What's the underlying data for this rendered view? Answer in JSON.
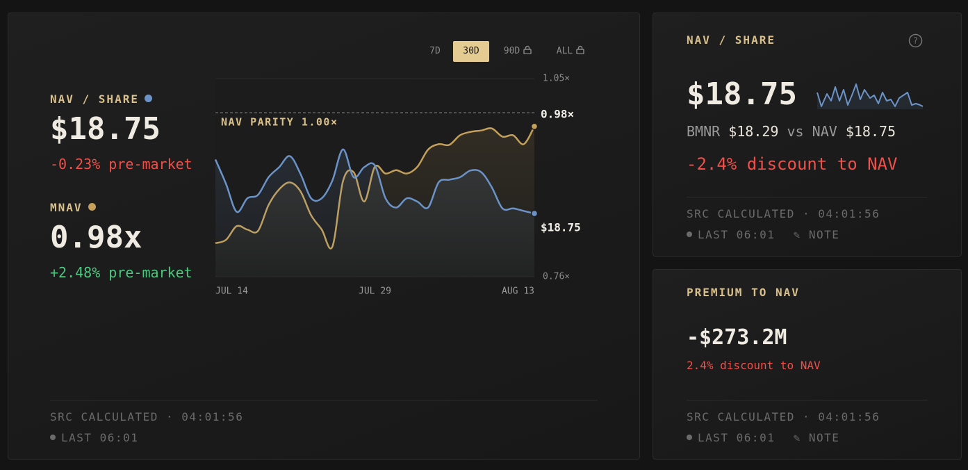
{
  "main_panel": {
    "timeframes": [
      "7D",
      "30D",
      "90D",
      "ALL"
    ],
    "metrics": [
      {
        "value": "$18.75",
        "change": "-0.23% pre-market"
      },
      {
        "value": "0.98x",
        "change": "+2.48% pre-market"
      }
    ],
    "source": "SRC CALCULATED · 04:01:56",
    "last": "LAST 06:01"
  },
  "chart_data": {
    "type": "line",
    "categories": [
      "JUL 14",
      null,
      null,
      null,
      null,
      null,
      null,
      null,
      null,
      null,
      null,
      null,
      null,
      null,
      null,
      "JUL 29",
      null,
      null,
      null,
      null,
      null,
      null,
      null,
      null,
      null,
      null,
      null,
      null,
      null,
      null,
      "AUG 13"
    ],
    "series": [
      {
        "name": "MNAV",
        "color": "#c4a05a",
        "values": [
          0.809,
          0.814,
          0.834,
          0.829,
          0.827,
          0.865,
          0.888,
          0.898,
          0.885,
          0.85,
          0.829,
          0.804,
          0.9,
          0.913,
          0.87,
          0.921,
          0.911,
          0.916,
          0.911,
          0.921,
          0.946,
          0.954,
          0.953,
          0.967,
          0.972,
          0.974,
          0.977,
          0.965,
          0.967,
          0.954,
          0.98
        ],
        "value_labels": [
          null,
          null,
          null,
          null,
          null,
          null,
          null,
          null,
          null,
          null,
          null,
          null,
          null,
          null,
          null,
          null,
          null,
          null,
          null,
          null,
          null,
          null,
          null,
          null,
          null,
          null,
          null,
          null,
          null,
          null,
          "0.98×"
        ]
      },
      {
        "name": "NAV / SHARE",
        "color": "#6b93c8",
        "axis": "y2",
        "values": [
          19.39,
          19.1,
          18.77,
          18.93,
          18.97,
          19.18,
          19.3,
          19.43,
          19.22,
          18.93,
          18.93,
          19.14,
          19.51,
          19.18,
          19.3,
          19.32,
          18.93,
          18.82,
          18.93,
          18.89,
          18.82,
          19.12,
          19.15,
          19.18,
          19.26,
          19.24,
          19.06,
          18.81,
          18.81,
          18.78,
          18.75
        ],
        "value_labels": [
          null,
          null,
          null,
          null,
          null,
          null,
          null,
          null,
          null,
          null,
          null,
          null,
          null,
          null,
          null,
          null,
          null,
          null,
          null,
          null,
          null,
          null,
          null,
          null,
          null,
          null,
          null,
          null,
          null,
          null,
          "$18.75"
        ]
      }
    ],
    "ylim": [
      0.76,
      1.05
    ],
    "yticks": [
      {
        "value": 1.05,
        "label": "1.05×"
      },
      {
        "value": 0.76,
        "label": "0.76×"
      }
    ],
    "y2lim": [
      18.0,
      20.35
    ],
    "reference_line": {
      "value": 1.0,
      "label": "NAV PARITY 1.00×"
    },
    "grid": true
  },
  "nav_card": {
    "title": "NAV / SHARE",
    "value": "$18.75",
    "ticker": "BMNR",
    "price": "$18.29",
    "vs": "vs",
    "nav_label": "NAV",
    "nav_value": "$18.75",
    "discount": "-2.4% discount to NAV",
    "source": "SRC CALCULATED · 04:01:56",
    "last": "LAST 06:01",
    "note": "NOTE"
  },
  "premium_card": {
    "title": "PREMIUM TO NAV",
    "value": "-$273.2M",
    "discount": "2.4% discount to NAV",
    "source": "SRC CALCULATED · 04:01:56",
    "last": "LAST 06:01",
    "note": "NOTE"
  }
}
